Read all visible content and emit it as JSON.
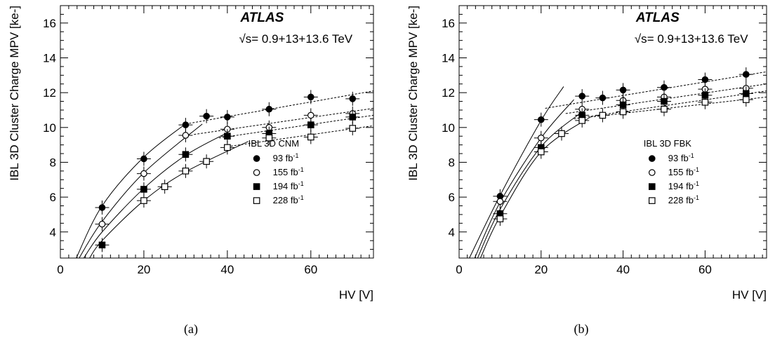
{
  "figure": {
    "captions": [
      "(a)",
      "(b)"
    ]
  },
  "chart_data": [
    {
      "type": "scatter",
      "panel_caption": "(a)",
      "xlabel": "HV [V]",
      "ylabel": "IBL 3D Cluster Charge MPV [ke-]",
      "xlim": [
        0,
        75
      ],
      "ylim": [
        2.5,
        17
      ],
      "xticks": [
        0,
        20,
        40,
        60
      ],
      "yticks": [
        4,
        6,
        8,
        10,
        12,
        14,
        16
      ],
      "experiment_label": "ATLAS",
      "energy_label_sqrt": "√s",
      "energy_label": "= 0.9+13+13.6 TeV",
      "legend_title": "IBL 3D CNM",
      "legend_placement": "center-right",
      "series": [
        {
          "name": "93 fb",
          "name_sup": "-1",
          "marker": "filled-circle",
          "x": [
            10,
            20,
            30,
            35,
            40,
            50,
            60,
            70
          ],
          "y": [
            5.4,
            8.2,
            10.15,
            10.65,
            10.6,
            11.05,
            11.75,
            11.65
          ],
          "fit_rise": {
            "x_range": [
              3.8,
              30.5
            ],
            "points": [
              [
                3.8,
                2.5
              ],
              [
                10,
                5.5
              ],
              [
                20,
                8.3
              ],
              [
                30.5,
                10.3
              ]
            ]
          },
          "fit_plateau": {
            "x_range": [
              30,
              75
            ],
            "y_range": [
              10.2,
              12.1
            ]
          }
        },
        {
          "name": "155 fb",
          "name_sup": "-1",
          "marker": "open-circle",
          "x": [
            10,
            20,
            30,
            40,
            50,
            60,
            70
          ],
          "y": [
            4.45,
            7.35,
            9.55,
            9.9,
            10.0,
            10.7,
            10.8
          ],
          "fit_rise": {
            "x_range": [
              4.5,
              34
            ],
            "points": [
              [
                4.5,
                2.5
              ],
              [
                10,
                4.6
              ],
              [
                20,
                7.4
              ],
              [
                34,
                10.2
              ]
            ]
          },
          "fit_plateau": {
            "x_range": [
              32,
              75
            ],
            "y_range": [
              9.6,
              11.1
            ]
          }
        },
        {
          "name": "194 fb",
          "name_sup": "-1",
          "marker": "filled-square",
          "x": [
            10,
            20,
            30,
            40,
            50,
            60,
            70
          ],
          "y": [
            3.25,
            6.45,
            8.45,
            9.5,
            9.65,
            10.15,
            10.6
          ],
          "fit_rise": {
            "x_range": [
              5.6,
              40
            ],
            "points": [
              [
                5.6,
                2.5
              ],
              [
                10,
                4.0
              ],
              [
                20,
                6.5
              ],
              [
                30,
                8.4
              ],
              [
                40,
                9.7
              ]
            ]
          },
          "fit_plateau": {
            "x_range": [
              38,
              75
            ],
            "y_range": [
              9.4,
              10.7
            ]
          }
        },
        {
          "name": "228 fb",
          "name_sup": "-1",
          "marker": "open-square",
          "x": [
            20,
            25,
            30,
            35,
            40,
            50,
            60,
            70
          ],
          "y": [
            5.8,
            6.6,
            7.5,
            8.05,
            8.85,
            9.4,
            9.45,
            9.95
          ],
          "fit_rise": {
            "x_range": [
              7,
              45
            ],
            "points": [
              [
                7,
                2.5
              ],
              [
                10,
                3.5
              ],
              [
                20,
                5.8
              ],
              [
                30,
                7.45
              ],
              [
                45,
                9.2
              ]
            ]
          },
          "fit_plateau": {
            "x_range": [
              40,
              75
            ],
            "y_range": [
              8.9,
              10.1
            ]
          }
        }
      ]
    },
    {
      "type": "scatter",
      "panel_caption": "(b)",
      "xlabel": "HV [V]",
      "ylabel": "IBL 3D Cluster Charge MPV [ke-]",
      "xlim": [
        0,
        75
      ],
      "ylim": [
        2.5,
        17
      ],
      "xticks": [
        0,
        20,
        40,
        60
      ],
      "yticks": [
        4,
        6,
        8,
        10,
        12,
        14,
        16
      ],
      "experiment_label": "ATLAS",
      "energy_label_sqrt": "√s",
      "energy_label": "= 0.9+13+13.6 TeV",
      "legend_title": "IBL 3D FBK",
      "legend_placement": "center-right",
      "series": [
        {
          "name": "93 fb",
          "name_sup": "-1",
          "marker": "filled-circle",
          "x": [
            10,
            20,
            30,
            35,
            40,
            50,
            60,
            70
          ],
          "y": [
            6.05,
            10.45,
            11.8,
            11.7,
            12.15,
            12.3,
            12.75,
            13.05
          ],
          "fit_rise": {
            "x_range": [
              2.5,
              25.5
            ],
            "points": [
              [
                2.5,
                2.5
              ],
              [
                10,
                6.1
              ],
              [
                20,
                10.4
              ],
              [
                25.5,
                12.35
              ]
            ]
          },
          "fit_plateau": {
            "x_range": [
              21,
              75
            ],
            "y_range": [
              11.1,
              13.2
            ]
          }
        },
        {
          "name": "155 fb",
          "name_sup": "-1",
          "marker": "open-circle",
          "x": [
            10,
            20,
            30,
            40,
            50,
            60,
            70
          ],
          "y": [
            5.75,
            9.4,
            11.05,
            11.55,
            11.75,
            12.2,
            12.25
          ],
          "fit_rise": {
            "x_range": [
              3.8,
              28
            ],
            "points": [
              [
                3.8,
                2.5
              ],
              [
                10,
                5.7
              ],
              [
                20,
                9.4
              ],
              [
                28,
                11.6
              ]
            ]
          },
          "fit_plateau": {
            "x_range": [
              26,
              75
            ],
            "y_range": [
              10.8,
              12.5
            ]
          }
        },
        {
          "name": "194 fb",
          "name_sup": "-1",
          "marker": "filled-square",
          "x": [
            10,
            20,
            30,
            40,
            50,
            60,
            70
          ],
          "y": [
            5.05,
            8.85,
            10.7,
            11.3,
            11.5,
            11.85,
            11.95
          ],
          "fit_rise": {
            "x_range": [
              4.5,
              30
            ],
            "points": [
              [
                4.5,
                2.5
              ],
              [
                10,
                5.3
              ],
              [
                20,
                8.9
              ],
              [
                30,
                10.9
              ]
            ]
          },
          "fit_plateau": {
            "x_range": [
              28,
              75
            ],
            "y_range": [
              10.5,
              12.1
            ]
          }
        },
        {
          "name": "228 fb",
          "name_sup": "-1",
          "marker": "open-square",
          "x": [
            10,
            20,
            25,
            30,
            35,
            40,
            50,
            60,
            70
          ],
          "y": [
            4.75,
            8.6,
            9.65,
            10.4,
            10.7,
            10.9,
            11.05,
            11.45,
            11.6
          ],
          "fit_rise": {
            "x_range": [
              5.2,
              32
            ],
            "points": [
              [
                5.2,
                2.5
              ],
              [
                10,
                4.9
              ],
              [
                20,
                8.6
              ],
              [
                32,
                10.6
              ]
            ]
          },
          "fit_plateau": {
            "x_range": [
              32,
              75
            ],
            "y_range": [
              10.6,
              11.75
            ]
          }
        }
      ]
    }
  ]
}
